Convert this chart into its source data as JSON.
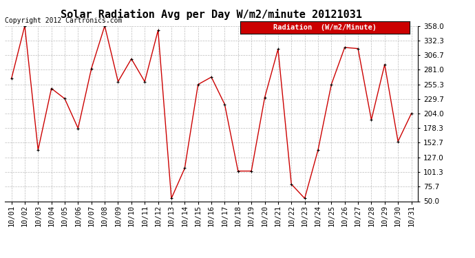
{
  "title": "Solar Radiation Avg per Day W/m2/minute 20121031",
  "copyright": "Copyright 2012 Cartronics.com",
  "legend_label": "Radiation  (W/m2/Minute)",
  "dates": [
    "10/01",
    "10/02",
    "10/03",
    "10/04",
    "10/05",
    "10/06",
    "10/07",
    "10/08",
    "10/09",
    "10/10",
    "10/11",
    "10/12",
    "10/13",
    "10/14",
    "10/15",
    "10/16",
    "10/17",
    "10/18",
    "10/19",
    "10/20",
    "10/21",
    "10/22",
    "10/23",
    "10/24",
    "10/25",
    "10/26",
    "10/27",
    "10/28",
    "10/29",
    "10/30",
    "10/31"
  ],
  "values": [
    265,
    358,
    140,
    248,
    230,
    178,
    283,
    358,
    260,
    300,
    260,
    350,
    55,
    108,
    255,
    268,
    220,
    103,
    103,
    232,
    317,
    80,
    55,
    140,
    255,
    320,
    318,
    193,
    290,
    155,
    204
  ],
  "y_ticks": [
    50.0,
    75.7,
    101.3,
    127.0,
    152.7,
    178.3,
    204.0,
    229.7,
    255.3,
    281.0,
    306.7,
    332.3,
    358.0
  ],
  "ylim": [
    50.0,
    358.0
  ],
  "line_color": "#cc0000",
  "marker_color": "#000000",
  "bg_color": "#ffffff",
  "plot_bg_color": "#ffffff",
  "grid_color": "#bbbbbb",
  "title_fontsize": 11,
  "copyright_fontsize": 7,
  "tick_fontsize": 7.5,
  "legend_fontsize": 7.5
}
